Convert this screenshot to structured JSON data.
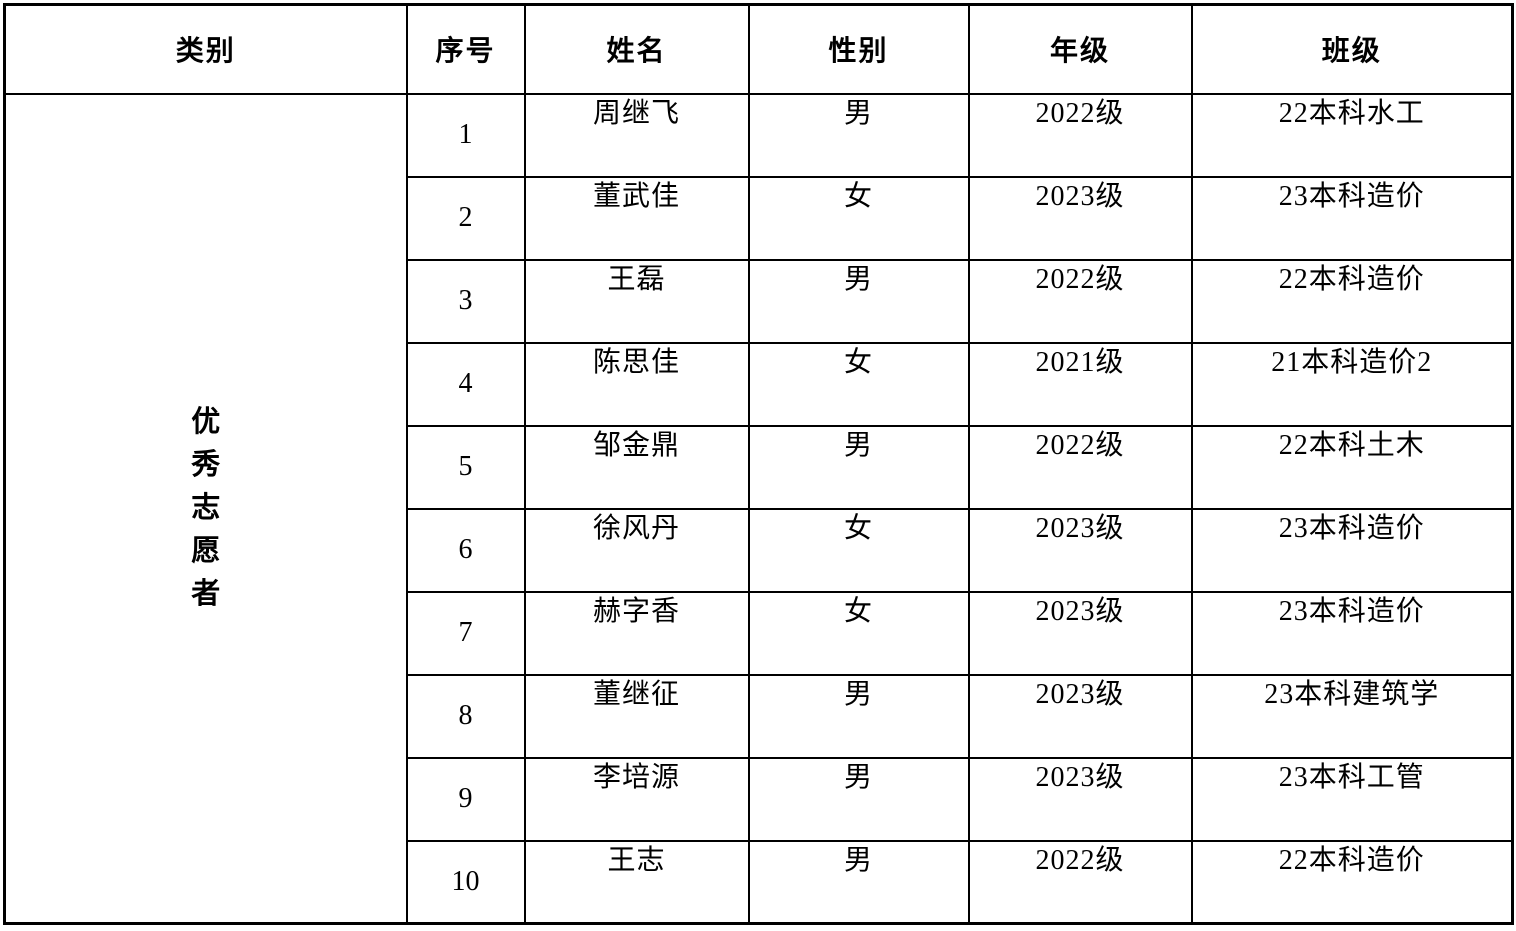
{
  "table": {
    "headers": {
      "category": "类别",
      "no": "序号",
      "name": "姓名",
      "gender": "性别",
      "grade": "年级",
      "class": "班级"
    },
    "category_label": "优秀志愿者",
    "rows": [
      {
        "no": "1",
        "name": "周继飞",
        "gender": "男",
        "grade": "2022级",
        "class": "22本科水工"
      },
      {
        "no": "2",
        "name": "董武佳",
        "gender": "女",
        "grade": "2023级",
        "class": "23本科造价"
      },
      {
        "no": "3",
        "name": "王磊",
        "gender": "男",
        "grade": "2022级",
        "class": "22本科造价"
      },
      {
        "no": "4",
        "name": "陈思佳",
        "gender": "女",
        "grade": "2021级",
        "class": "21本科造价2"
      },
      {
        "no": "5",
        "name": "邹金鼎",
        "gender": "男",
        "grade": "2022级",
        "class": "22本科土木"
      },
      {
        "no": "6",
        "name": "徐风丹",
        "gender": "女",
        "grade": "2023级",
        "class": "23本科造价"
      },
      {
        "no": "7",
        "name": "赫字香",
        "gender": "女",
        "grade": "2023级",
        "class": "23本科造价"
      },
      {
        "no": "8",
        "name": "董继征",
        "gender": "男",
        "grade": "2023级",
        "class": "23本科建筑学"
      },
      {
        "no": "9",
        "name": "李培源",
        "gender": "男",
        "grade": "2023级",
        "class": "23本科工管"
      },
      {
        "no": "10",
        "name": "王志",
        "gender": "男",
        "grade": "2022级",
        "class": "22本科造价"
      }
    ]
  },
  "colors": {
    "border": "#000000",
    "text": "#000000",
    "background": "#ffffff"
  }
}
